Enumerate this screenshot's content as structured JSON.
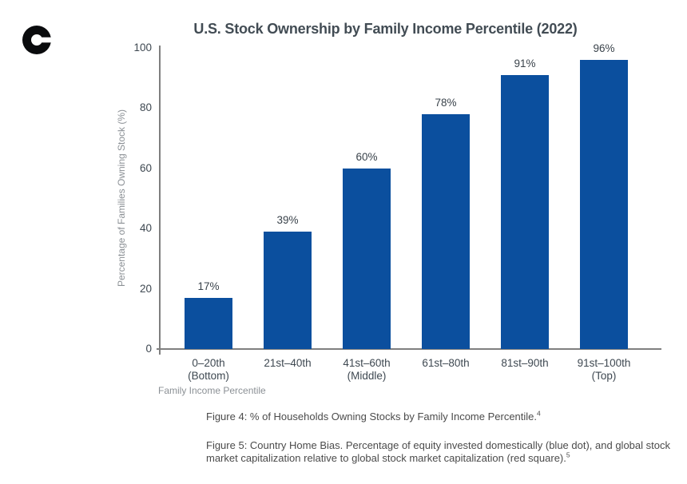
{
  "logo": {
    "icon": "coinbase-c-logo",
    "color": "#0a0b0d"
  },
  "chart_data": {
    "type": "bar",
    "title": "U.S. Stock Ownership by Family Income Percentile (2022)",
    "xlabel": "Family Income Percentile",
    "ylabel": "Percentage of Families Owning Stock (%)",
    "ylim": [
      0,
      100
    ],
    "yticks": [
      0,
      20,
      40,
      60,
      80,
      100
    ],
    "grid": false,
    "legend": "none",
    "bar_color": "#0b4f9e",
    "categories": [
      {
        "line1": "0–20th",
        "line2": "(Bottom)"
      },
      {
        "line1": "21st–40th",
        "line2": ""
      },
      {
        "line1": "41st–60th",
        "line2": "(Middle)"
      },
      {
        "line1": "61st–80th",
        "line2": ""
      },
      {
        "line1": "81st–90th",
        "line2": ""
      },
      {
        "line1": "91st–100th",
        "line2": "(Top)"
      }
    ],
    "values": [
      17,
      39,
      60,
      78,
      91,
      96
    ],
    "value_labels": [
      "17%",
      "39%",
      "60%",
      "78%",
      "91%",
      "96%"
    ]
  },
  "captions": {
    "figure4": {
      "text": "Figure 4: % of Households Owning Stocks by Family Income Percentile.",
      "footnote": "4"
    },
    "figure5": {
      "text": "Figure 5: Country Home Bias. Percentage of equity invested domestically (blue dot), and global stock market capitalization relative to global stock market capitalization (red square).",
      "footnote": "5"
    }
  },
  "colors": {
    "bar": "#0b4f9e",
    "title_text": "#424c54",
    "tick_text": "#3e4851",
    "axis_line": "#7f7f7f",
    "muted_text": "#8b9095",
    "caption_text": "#4b4b4b",
    "logo": "#0a0b0d"
  }
}
